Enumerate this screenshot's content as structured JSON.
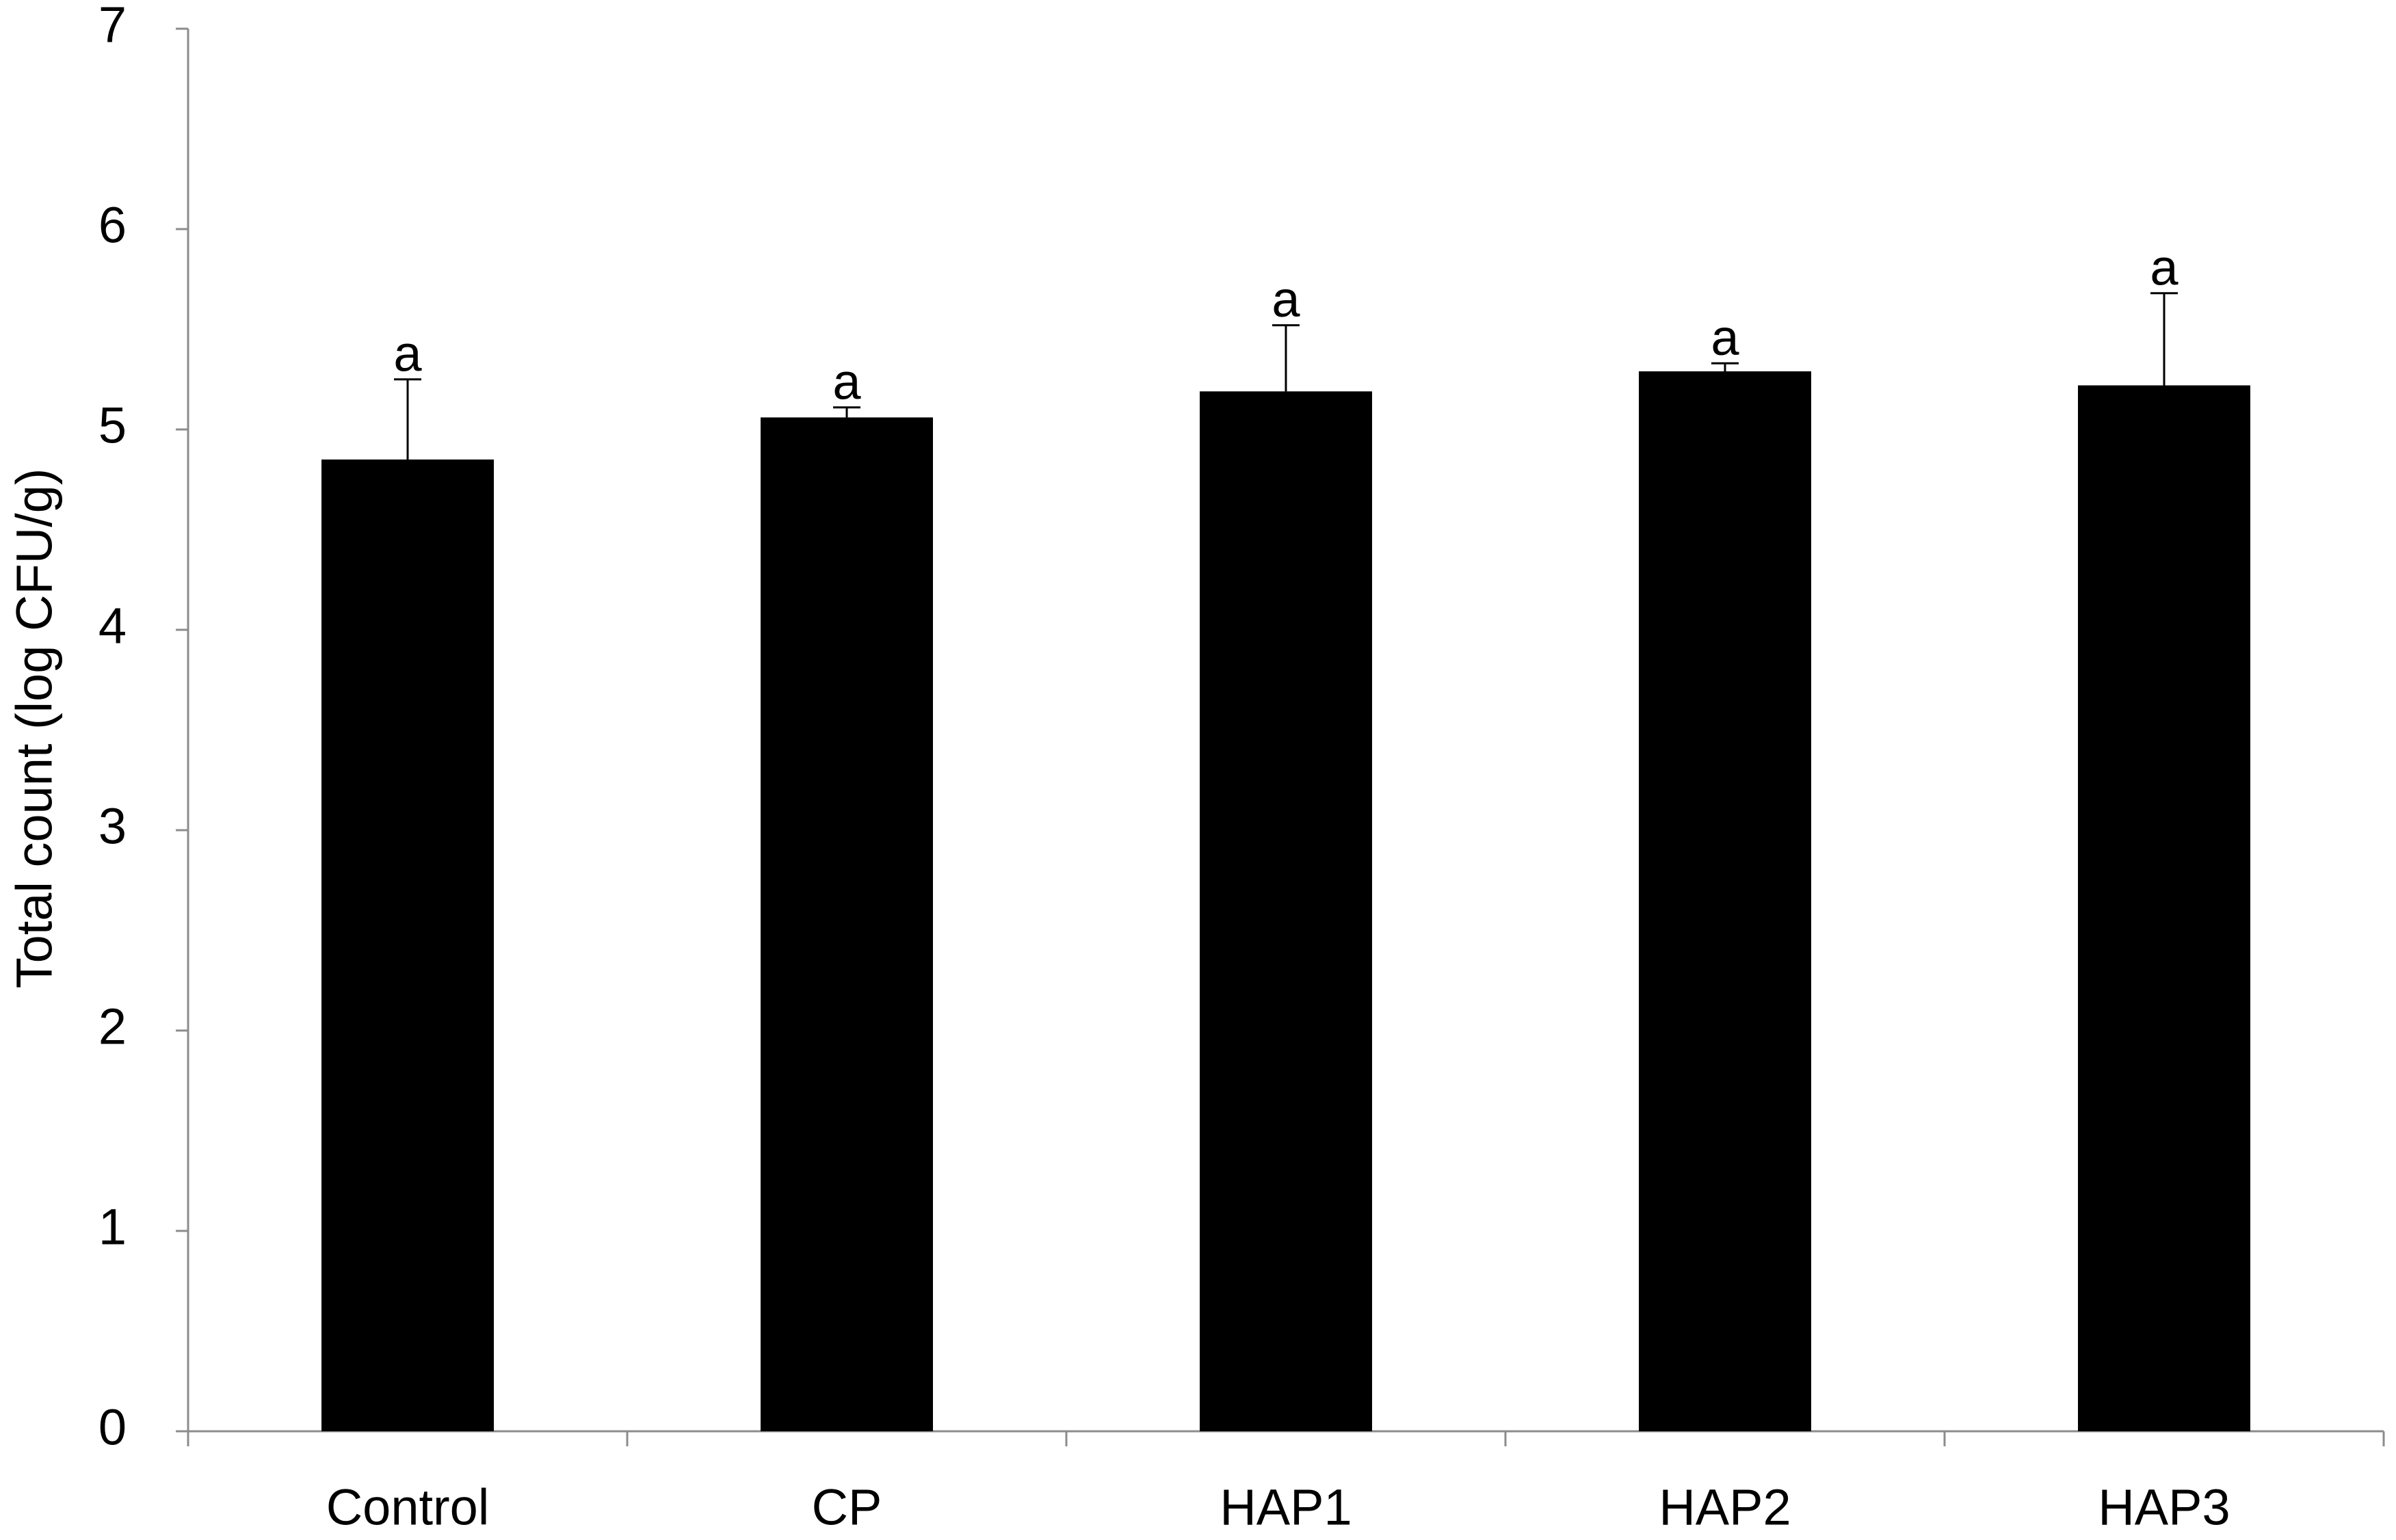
{
  "chart_data": {
    "type": "bar",
    "y_label": "Total count (log CFU/g)",
    "categories": [
      "Control",
      "CP",
      "HAP1",
      "HAP2",
      "HAP3"
    ],
    "values": [
      4.85,
      5.06,
      5.19,
      5.29,
      5.22
    ],
    "errors": [
      0.4,
      0.05,
      0.33,
      0.04,
      0.46
    ],
    "annotations": [
      "a",
      "a",
      "a",
      "a",
      "a"
    ],
    "color": "#000000",
    "ylim": [
      0,
      7
    ],
    "yticks": [
      0,
      1,
      2,
      3,
      4,
      5,
      6,
      7
    ],
    "grid": false
  }
}
